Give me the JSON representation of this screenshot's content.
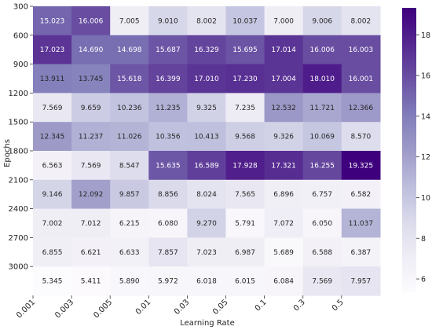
{
  "chart_data": {
    "type": "heatmap",
    "xlabel": "Learning Rate",
    "ylabel": "Epochs",
    "x_categories": [
      "0.001",
      "0.003",
      "0.005",
      "0.01",
      "0.03",
      "0.05",
      "0.1",
      "0.3",
      "0.5"
    ],
    "y_categories": [
      "300",
      "600",
      "900",
      "1200",
      "1500",
      "1800",
      "2100",
      "2400",
      "2700",
      "3000"
    ],
    "values": [
      [
        15.023,
        16.006,
        7.005,
        9.01,
        8.002,
        10.037,
        7.0,
        9.006,
        8.002
      ],
      [
        17.023,
        14.69,
        14.698,
        15.687,
        16.329,
        15.695,
        17.014,
        16.006,
        16.003
      ],
      [
        13.911,
        13.745,
        15.618,
        16.399,
        17.01,
        17.23,
        17.004,
        18.01,
        16.001
      ],
      [
        7.569,
        9.659,
        10.236,
        11.235,
        9.325,
        7.235,
        12.532,
        11.721,
        12.366
      ],
      [
        12.345,
        11.237,
        11.026,
        10.356,
        10.413,
        9.568,
        9.326,
        10.069,
        8.57
      ],
      [
        6.563,
        7.569,
        8.547,
        15.635,
        16.589,
        17.928,
        17.321,
        16.255,
        19.325
      ],
      [
        9.146,
        12.092,
        9.857,
        8.856,
        8.024,
        7.565,
        6.896,
        6.757,
        6.582
      ],
      [
        7.002,
        7.012,
        6.215,
        6.08,
        9.27,
        5.791,
        7.072,
        6.05,
        11.037
      ],
      [
        6.855,
        6.621,
        6.633,
        7.857,
        7.023,
        6.987,
        5.689,
        6.588,
        6.387
      ],
      [
        5.345,
        5.411,
        5.89,
        5.972,
        6.018,
        6.015,
        6.084,
        7.569,
        7.957
      ]
    ],
    "value_labels": [
      [
        "15.023",
        "16.006",
        "7.005",
        "9.010",
        "8.002",
        "10.037",
        "7.000",
        "9.006",
        "8.002"
      ],
      [
        "17.023",
        "14.690",
        "14.698",
        "15.687",
        "16.329",
        "15.695",
        "17.014",
        "16.006",
        "16.003"
      ],
      [
        "13.911",
        "13.745",
        "15.618",
        "16.399",
        "17.010",
        "17.230",
        "17.004",
        "18.010",
        "16.001"
      ],
      [
        "7.569",
        "9.659",
        "10.236",
        "11.235",
        "9.325",
        "7.235",
        "12.532",
        "11.721",
        "12.366"
      ],
      [
        "12.345",
        "11.237",
        "11.026",
        "10.356",
        "10.413",
        "9.568",
        "9.326",
        "10.069",
        "8.570"
      ],
      [
        "6.563",
        "7.569",
        "8.547",
        "15.635",
        "16.589",
        "17.928",
        "17.321",
        "16.255",
        "19.325"
      ],
      [
        "9.146",
        "12.092",
        "9.857",
        "8.856",
        "8.024",
        "7.565",
        "6.896",
        "6.757",
        "6.582"
      ],
      [
        "7.002",
        "7.012",
        "6.215",
        "6.080",
        "9.270",
        "5.791",
        "7.072",
        "6.050",
        "11.037"
      ],
      [
        "6.855",
        "6.621",
        "6.633",
        "7.857",
        "7.023",
        "6.987",
        "5.689",
        "6.588",
        "6.387"
      ],
      [
        "5.345",
        "5.411",
        "5.890",
        "5.972",
        "6.018",
        "6.015",
        "6.084",
        "7.569",
        "7.957"
      ]
    ],
    "colorbar": {
      "min": 5.345,
      "max": 19.325,
      "ticks": [
        6,
        8,
        10,
        12,
        14,
        16,
        18
      ],
      "colormap": "Purples",
      "stops": [
        "#fcfbfd",
        "#efedf5",
        "#dadaeb",
        "#bcbddc",
        "#9e9ac8",
        "#807dba",
        "#6a51a3",
        "#54278f",
        "#3f007d"
      ]
    },
    "grid": false,
    "legend": "colorbar-right"
  }
}
